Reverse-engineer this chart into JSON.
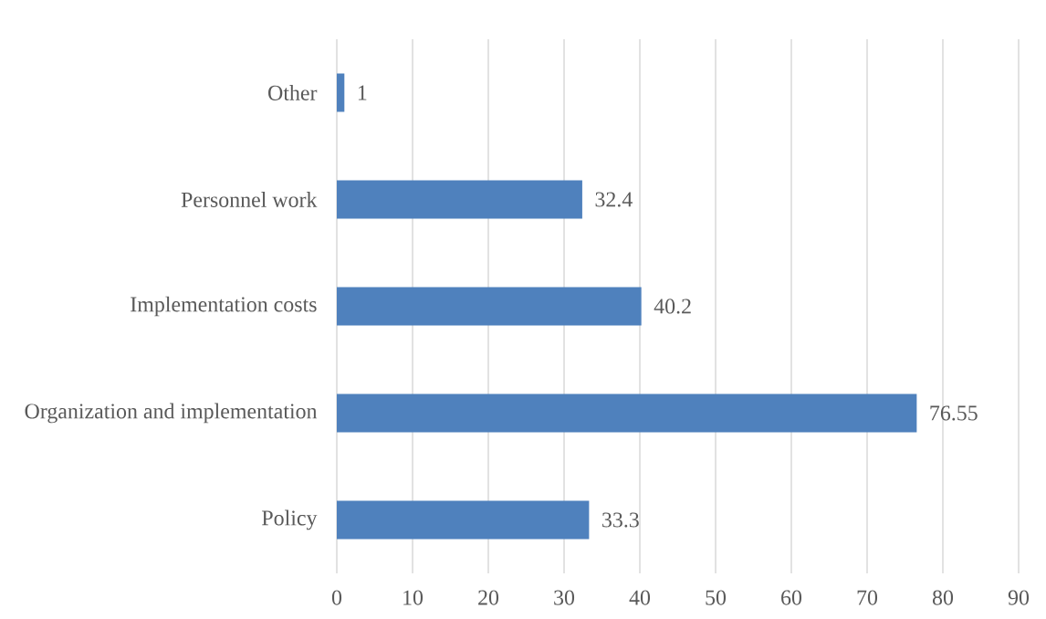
{
  "chart_data": {
    "type": "bar",
    "orientation": "horizontal",
    "categories": [
      "Other",
      "Personnel work",
      "Implementation costs",
      "Organization and implementation",
      "Policy"
    ],
    "values": [
      1,
      32.4,
      40.2,
      76.55,
      33.3
    ],
    "color": "#4f81bd",
    "xlim": [
      0,
      90
    ],
    "xticks": [
      0,
      10,
      20,
      30,
      40,
      50,
      60,
      70,
      80,
      90
    ],
    "grid": "x",
    "data_labels": true
  }
}
